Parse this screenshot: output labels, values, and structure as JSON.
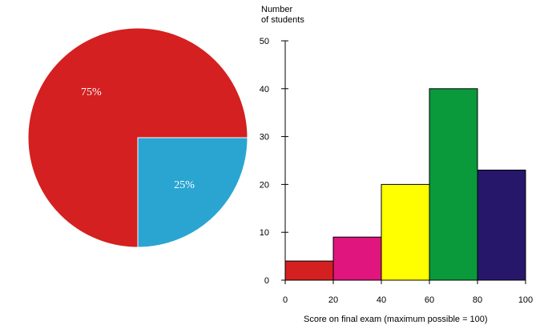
{
  "colors": {
    "pie_large": "#d42020",
    "pie_small": "#2aa5d2",
    "bar_0_20": "#d42020",
    "bar_20_40": "#e0157d",
    "bar_40_60": "#ffff00",
    "bar_60_80": "#0a9a3c",
    "bar_80_100": "#27176b",
    "axis": "#000000"
  },
  "chart_data": [
    {
      "type": "pie",
      "slices": [
        {
          "label": "75%",
          "value": 75,
          "color": "#d42020"
        },
        {
          "label": "25%",
          "value": 25,
          "color": "#2aa5d2"
        }
      ],
      "start": "3 o'clock",
      "direction": "counterclockwise"
    },
    {
      "type": "bar",
      "subtype": "histogram",
      "ylabel_lines": [
        "Number",
        "of students"
      ],
      "xlabel": "Score on final exam (maximum possible = 100)",
      "xlim": [
        0,
        100
      ],
      "ylim": [
        0,
        50
      ],
      "x_ticks": [
        "0",
        "20",
        "40",
        "60",
        "80",
        "100"
      ],
      "y_ticks": [
        "0",
        "10",
        "20",
        "30",
        "40",
        "50"
      ],
      "bins": [
        {
          "from": 0,
          "to": 20,
          "value": 4,
          "color": "#d42020"
        },
        {
          "from": 20,
          "to": 40,
          "value": 9,
          "color": "#e0157d"
        },
        {
          "from": 40,
          "to": 60,
          "value": 20,
          "color": "#ffff00"
        },
        {
          "from": 60,
          "to": 80,
          "value": 40,
          "color": "#0a9a3c"
        },
        {
          "from": 80,
          "to": 100,
          "value": 23,
          "color": "#27176b"
        }
      ],
      "grid": false,
      "legend": "none"
    }
  ]
}
